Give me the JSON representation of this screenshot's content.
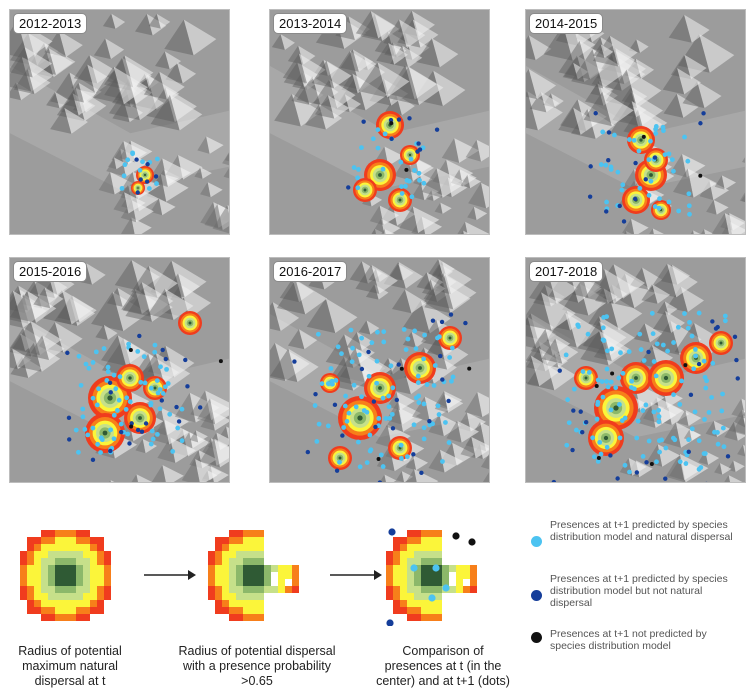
{
  "panels": [
    {
      "label": "2012-2013"
    },
    {
      "label": "2013-2014"
    },
    {
      "label": "2014-2015"
    },
    {
      "label": "2015-2016"
    },
    {
      "label": "2016-2017"
    },
    {
      "label": "2017-2018"
    }
  ],
  "bottom": {
    "captions": [
      "Radius of potential maximum natural dispersal at t",
      "Radius of potential dispersal with a presence probability >0.65",
      "Comparison of presences at t (in the center) and at t+1 (dots)"
    ]
  },
  "legend": [
    {
      "text": "Presences at t+1 predicted by species distribution model and natural dispersal",
      "color": "#4cc3f1"
    },
    {
      "text": "Presences at t+1 predicted by species distribution model but not natural dispersal",
      "color": "#153e9a"
    },
    {
      "text": "Presences at t+1 not predicted by species distribution model",
      "color": "#111111"
    }
  ],
  "colors": {
    "ring_red": "#f03c1e",
    "ring_orange": "#f77f1a",
    "ring_yellow": "#fbf53a",
    "ring_lightgreen": "#c6e08a",
    "ring_green": "#8cb86a",
    "center": "#2f5a34",
    "dot_light": "#4cc3f1",
    "dot_dark": "#153e9a",
    "dot_black": "#111111"
  }
}
